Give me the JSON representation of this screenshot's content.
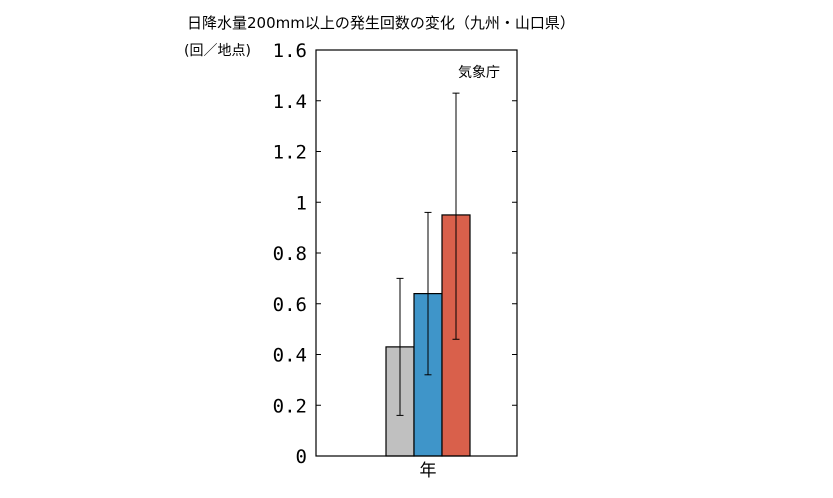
{
  "chart_data": {
    "type": "bar",
    "title": "日降水量200mm以上の発生回数の変化（九州・山口県）",
    "ylabel": "(回／地点)",
    "source_label": "気象庁",
    "categories": [
      "年"
    ],
    "series": [
      {
        "values": [
          0.43
        ],
        "error_low": [
          0.16
        ],
        "error_high": [
          0.7
        ],
        "color": "#c0c0c0"
      },
      {
        "values": [
          0.64
        ],
        "error_low": [
          0.32
        ],
        "error_high": [
          0.96
        ],
        "color": "#3f95c9"
      },
      {
        "values": [
          0.95
        ],
        "error_low": [
          0.46
        ],
        "error_high": [
          1.43
        ],
        "color": "#d9604b"
      }
    ],
    "ylim": [
      0,
      1.6
    ],
    "yticks": [
      "0",
      "0.2",
      "0.4",
      "0.6",
      "0.8",
      "1",
      "1.2",
      "1.4",
      "1.6"
    ],
    "grid": false,
    "legend": "none"
  }
}
